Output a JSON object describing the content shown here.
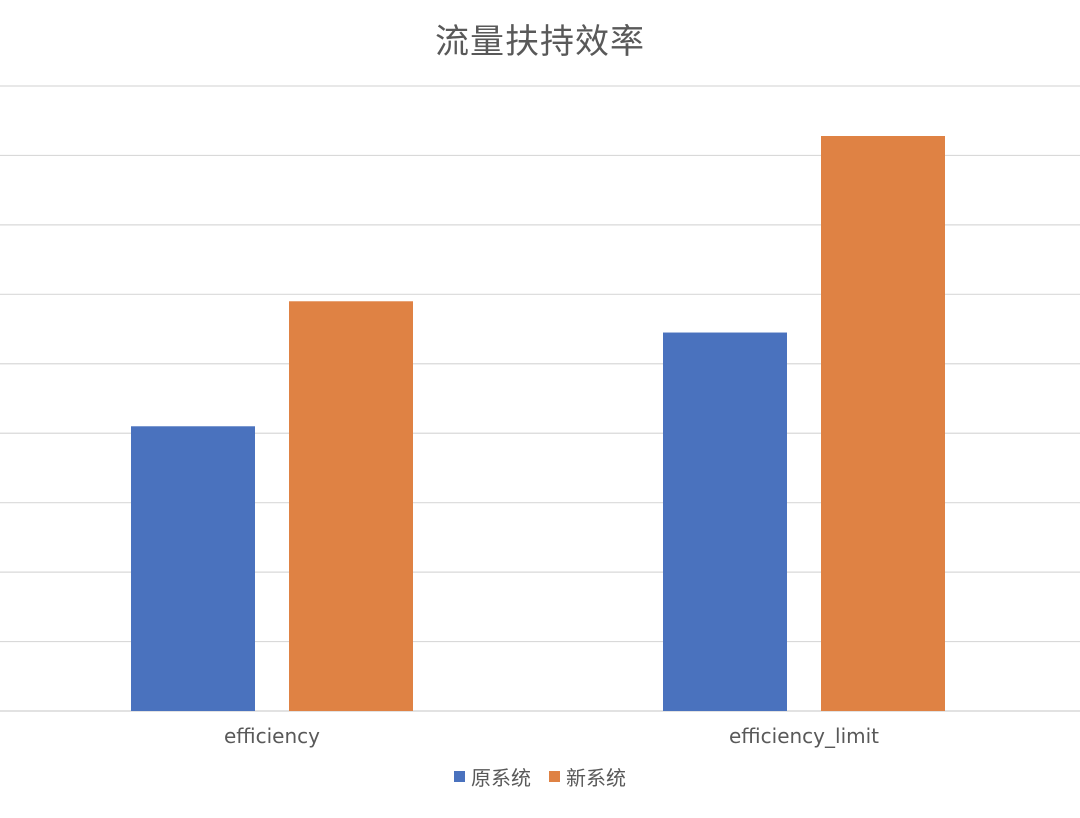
{
  "chart_data": {
    "type": "bar",
    "title": "流量扶持效率",
    "categories": [
      "efficiency",
      "efficiency_limit"
    ],
    "series": [
      {
        "name": "原系统",
        "values": [
          4.1,
          5.45
        ],
        "color": "#4A72BE"
      },
      {
        "name": "新系统",
        "values": [
          5.9,
          8.28
        ],
        "color": "#DF8244"
      }
    ],
    "xlabel": "",
    "ylabel": "",
    "ylim": [
      0,
      9
    ],
    "y_ticks": [
      0,
      1,
      2,
      3,
      4,
      5,
      6,
      7,
      8,
      9
    ],
    "grid": true,
    "gridline_color": "#D9D9D9",
    "legend_position": "bottom",
    "y_tick_labels_visible": false
  }
}
